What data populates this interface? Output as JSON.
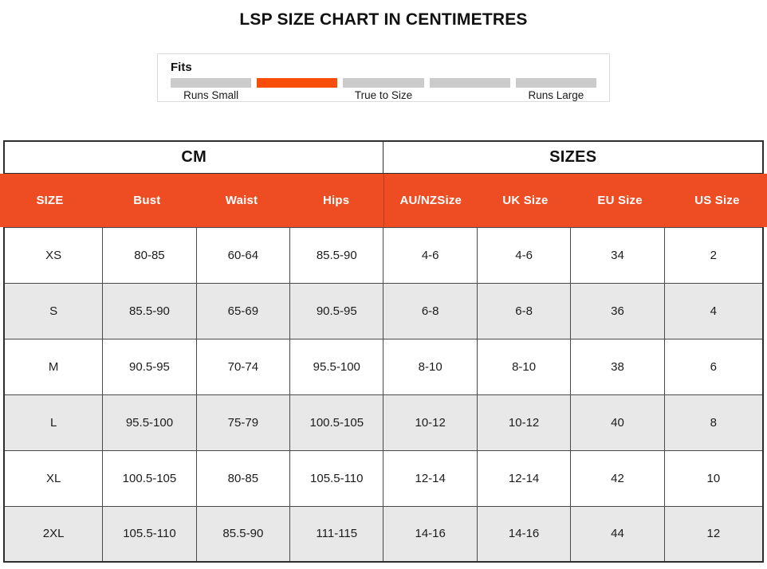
{
  "title": "LSP SIZE CHART IN CENTIMETRES",
  "fits": {
    "label": "Fits",
    "segment_count": 5,
    "active_index": 1,
    "scale_labels": [
      "Runs Small",
      "True to Size",
      "Runs Large"
    ]
  },
  "colors": {
    "header_bg": "#ee4d23",
    "fits_active": "#fa4d09",
    "fits_inactive": "#cbcbcb",
    "row_alt": "#e8e8e8"
  },
  "chart_data": {
    "type": "table",
    "title": "LSP SIZE CHART IN CENTIMETRES",
    "column_groups": [
      {
        "label": "CM",
        "span": 4
      },
      {
        "label": "SIZES",
        "span": 4
      }
    ],
    "columns": [
      "SIZE",
      "Bust",
      "Waist",
      "Hips",
      "AU/NZSize",
      "UK Size",
      "EU Size",
      "US Size"
    ],
    "rows": [
      [
        "XS",
        "80-85",
        "60-64",
        "85.5-90",
        "4-6",
        "4-6",
        "34",
        "2"
      ],
      [
        "S",
        "85.5-90",
        "65-69",
        "90.5-95",
        "6-8",
        "6-8",
        "36",
        "4"
      ],
      [
        "M",
        "90.5-95",
        "70-74",
        "95.5-100",
        "8-10",
        "8-10",
        "38",
        "6"
      ],
      [
        "L",
        "95.5-100",
        "75-79",
        "100.5-105",
        "10-12",
        "10-12",
        "40",
        "8"
      ],
      [
        "XL",
        "100.5-105",
        "80-85",
        "105.5-110",
        "12-14",
        "12-14",
        "42",
        "10"
      ],
      [
        "2XL",
        "105.5-110",
        "85.5-90",
        "111-115",
        "14-16",
        "14-16",
        "44",
        "12"
      ]
    ]
  }
}
